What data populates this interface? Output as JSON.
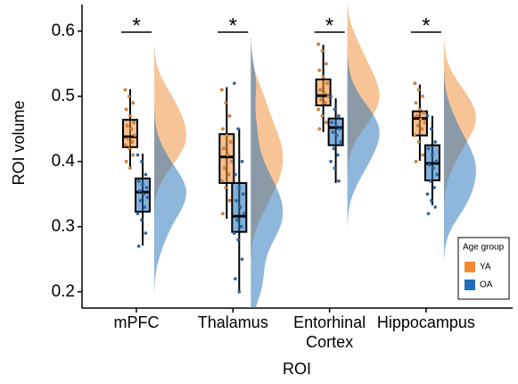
{
  "chart_data": {
    "type": "raincloud",
    "y_label": "ROI volume",
    "x_label": "ROI",
    "categories": [
      "mPFC",
      "Thalamus",
      "Entorhinal Cortex",
      "Hippocampus"
    ],
    "ylim": [
      0.175,
      0.641
    ],
    "yticks": [
      0.2,
      0.3,
      0.4,
      0.5,
      0.6
    ],
    "significance": [
      "*",
      "*",
      "*",
      "*"
    ],
    "legend_title": "Age group",
    "legend_position": "lower right",
    "series": [
      {
        "name": "YA",
        "color": "#f08a30",
        "boxes": [
          {
            "min": 0.388,
            "q1": 0.422,
            "median": 0.438,
            "q3": 0.464,
            "max": 0.511
          },
          {
            "min": 0.312,
            "q1": 0.367,
            "median": 0.407,
            "q3": 0.442,
            "max": 0.514
          },
          {
            "min": 0.445,
            "q1": 0.486,
            "median": 0.501,
            "q3": 0.526,
            "max": 0.579
          },
          {
            "min": 0.401,
            "q1": 0.44,
            "median": 0.466,
            "q3": 0.477,
            "max": 0.518
          }
        ],
        "points": [
          [
            0.51,
            0.5,
            0.49,
            0.48,
            0.47,
            0.46,
            0.455,
            0.45,
            0.44,
            0.435,
            0.43,
            0.425,
            0.42,
            0.41,
            0.4,
            0.39
          ],
          [
            0.51,
            0.49,
            0.47,
            0.45,
            0.44,
            0.43,
            0.42,
            0.41,
            0.4,
            0.39,
            0.38,
            0.37,
            0.36,
            0.34,
            0.32
          ],
          [
            0.58,
            0.57,
            0.55,
            0.54,
            0.53,
            0.52,
            0.51,
            0.505,
            0.5,
            0.495,
            0.49,
            0.48,
            0.47,
            0.46,
            0.45
          ],
          [
            0.52,
            0.51,
            0.5,
            0.49,
            0.48,
            0.475,
            0.47,
            0.465,
            0.46,
            0.455,
            0.45,
            0.44,
            0.43,
            0.41,
            0.4
          ]
        ]
      },
      {
        "name": "OA",
        "color": "#1f6fb8",
        "boxes": [
          {
            "min": 0.271,
            "q1": 0.323,
            "median": 0.353,
            "q3": 0.374,
            "max": 0.412
          },
          {
            "min": 0.2,
            "q1": 0.292,
            "median": 0.316,
            "q3": 0.367,
            "max": 0.45
          },
          {
            "min": 0.367,
            "q1": 0.425,
            "median": 0.452,
            "q3": 0.466,
            "max": 0.497
          },
          {
            "min": 0.333,
            "q1": 0.371,
            "median": 0.397,
            "q3": 0.425,
            "max": 0.47
          }
        ],
        "points": [
          [
            0.41,
            0.4,
            0.38,
            0.37,
            0.365,
            0.36,
            0.355,
            0.35,
            0.345,
            0.34,
            0.33,
            0.32,
            0.31,
            0.29,
            0.27
          ],
          [
            0.52,
            0.45,
            0.4,
            0.38,
            0.36,
            0.35,
            0.34,
            0.33,
            0.32,
            0.31,
            0.3,
            0.29,
            0.28,
            0.25,
            0.22,
            0.2
          ],
          [
            0.5,
            0.48,
            0.47,
            0.46,
            0.455,
            0.45,
            0.445,
            0.44,
            0.43,
            0.42,
            0.41,
            0.4,
            0.39,
            0.37
          ],
          [
            0.47,
            0.45,
            0.43,
            0.42,
            0.41,
            0.4,
            0.395,
            0.39,
            0.38,
            0.37,
            0.36,
            0.35,
            0.34,
            0.33,
            0.32
          ]
        ]
      }
    ]
  }
}
